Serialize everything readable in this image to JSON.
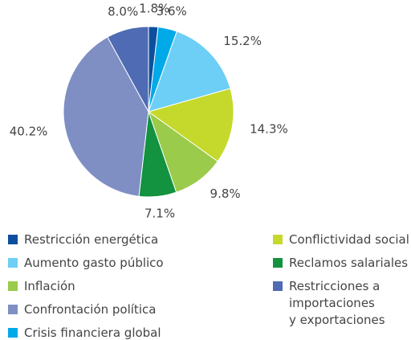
{
  "chart_data": {
    "type": "pie",
    "categories": [
      "Restricción energética",
      "Crisis financiera global",
      "Aumento gasto público",
      "Conflictividad social",
      "Inflación",
      "Reclamos salariales",
      "Confrontación política",
      "Restricciones a importaciones y exportaciones"
    ],
    "values": [
      1.8,
      3.6,
      15.2,
      14.3,
      9.8,
      7.1,
      40.2,
      8.0
    ],
    "value_labels": [
      "1.8%",
      "3.6%",
      "15.2%",
      "14.3%",
      "9.8%",
      "7.1%",
      "40.2%",
      "8.0%"
    ],
    "colors": [
      "#0d4f9e",
      "#00a9e8",
      "#6dcff6",
      "#c5d92d",
      "#9acb4a",
      "#13923f",
      "#7f8fc4",
      "#4e6bb3"
    ]
  }
}
